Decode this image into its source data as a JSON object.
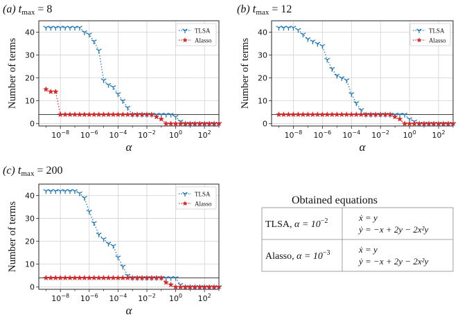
{
  "chart_data": [
    {
      "type": "line",
      "panel_label": "(a)",
      "title": "t_max = 8",
      "title_var": "t",
      "title_sub": "max",
      "title_rest": "= 8",
      "xlabel": "α",
      "ylabel": "Number of terms",
      "xscale": "log",
      "xlim_exp": [
        -9.5,
        3
      ],
      "ylim": [
        -1,
        45
      ],
      "yticks": [
        0,
        10,
        20,
        30,
        40
      ],
      "xticks_exp": [
        -8,
        -6,
        -4,
        -2,
        0,
        2
      ],
      "reference_line": 4,
      "grid": true,
      "legend": "top-right",
      "series": [
        {
          "name": "TLSA",
          "color": "#1f77b4",
          "marker": "tri",
          "x_exp": [
            -9,
            -8.667,
            -8.333,
            -8,
            -7.667,
            -7.333,
            -7,
            -6.667,
            -6.333,
            -6,
            -5.667,
            -5.333,
            -5,
            -4.667,
            -4.333,
            -4,
            -3.667,
            -3.333,
            -3,
            -2.667,
            -2.333,
            -2,
            -1.667,
            -1.333,
            -1,
            -0.667,
            -0.333,
            0,
            0.333,
            0.667,
            1,
            1.333,
            1.667,
            2,
            2.333,
            2.667,
            3
          ],
          "values": [
            42,
            42,
            42,
            42,
            42,
            42,
            42,
            42,
            40,
            39,
            36,
            32,
            19,
            17,
            16,
            13,
            10,
            7,
            4,
            4,
            4,
            4,
            4,
            4,
            4,
            4,
            4,
            3,
            1,
            0,
            0,
            0,
            0,
            0,
            0,
            0,
            0
          ]
        },
        {
          "name": "Alasso",
          "color": "#d62728",
          "marker": "star",
          "x_exp": [
            -9,
            -8.667,
            -8.333,
            -8,
            -7.667,
            -7.333,
            -7,
            -6.667,
            -6.333,
            -6,
            -5.667,
            -5.333,
            -5,
            -4.667,
            -4.333,
            -4,
            -3.667,
            -3.333,
            -3,
            -2.667,
            -2.333,
            -2,
            -1.667,
            -1.333,
            -1,
            -0.667,
            -0.333,
            0,
            0.333,
            0.667,
            1,
            1.333,
            1.667,
            2,
            2.333,
            2.667,
            3
          ],
          "values": [
            15,
            14,
            14,
            4,
            4,
            4,
            4,
            4,
            4,
            4,
            4,
            4,
            4,
            4,
            4,
            4,
            4,
            4,
            4,
            4,
            4,
            4,
            4,
            3,
            2,
            0,
            0,
            0,
            0,
            0,
            0,
            0,
            0,
            0,
            0,
            0,
            0
          ]
        }
      ]
    },
    {
      "type": "line",
      "panel_label": "(b)",
      "title": "t_max = 12",
      "title_var": "t",
      "title_sub": "max",
      "title_rest": "= 12",
      "xlabel": "α",
      "ylabel": "Number of terms",
      "xscale": "log",
      "xlim_exp": [
        -9.5,
        3
      ],
      "ylim": [
        -1,
        45
      ],
      "yticks": [
        0,
        10,
        20,
        30,
        40
      ],
      "xticks_exp": [
        -8,
        -6,
        -4,
        -2,
        0,
        2
      ],
      "reference_line": 4,
      "grid": true,
      "legend": "top-right",
      "series": [
        {
          "name": "TLSA",
          "color": "#1f77b4",
          "marker": "tri",
          "x_exp": [
            -9,
            -8.667,
            -8.333,
            -8,
            -7.667,
            -7.333,
            -7,
            -6.667,
            -6.333,
            -6,
            -5.667,
            -5.333,
            -5,
            -4.667,
            -4.333,
            -4,
            -3.667,
            -3.333,
            -3,
            -2.667,
            -2.333,
            -2,
            -1.667,
            -1.333,
            -1,
            -0.667,
            -0.333,
            0,
            0.333,
            0.667,
            1,
            1.333,
            1.667,
            2,
            2.333,
            2.667,
            3
          ],
          "values": [
            42,
            42,
            42,
            42,
            41,
            39,
            37,
            36,
            35,
            34,
            28,
            24,
            21,
            20,
            19,
            13,
            9,
            6,
            4,
            4,
            4,
            4,
            4,
            4,
            4,
            4,
            4,
            2,
            1,
            0,
            0,
            0,
            0,
            0,
            0,
            0,
            0
          ]
        },
        {
          "name": "Alasso",
          "color": "#d62728",
          "marker": "star",
          "x_exp": [
            -9,
            -8.667,
            -8.333,
            -8,
            -7.667,
            -7.333,
            -7,
            -6.667,
            -6.333,
            -6,
            -5.667,
            -5.333,
            -5,
            -4.667,
            -4.333,
            -4,
            -3.667,
            -3.333,
            -3,
            -2.667,
            -2.333,
            -2,
            -1.667,
            -1.333,
            -1,
            -0.667,
            -0.333,
            0,
            0.333,
            0.667,
            1,
            1.333,
            1.667,
            2,
            2.333,
            2.667,
            3
          ],
          "values": [
            4,
            4,
            4,
            4,
            4,
            4,
            4,
            4,
            4,
            4,
            4,
            4,
            4,
            4,
            4,
            4,
            4,
            4,
            4,
            4,
            4,
            4,
            4,
            4,
            3,
            2,
            0,
            0,
            0,
            0,
            0,
            0,
            0,
            0,
            0,
            0,
            0
          ]
        }
      ]
    },
    {
      "type": "line",
      "panel_label": "(c)",
      "title": "t_max = 200",
      "title_var": "t",
      "title_sub": "max",
      "title_rest": "= 200",
      "xlabel": "α",
      "ylabel": "Number of terms",
      "xscale": "log",
      "xlim_exp": [
        -9.5,
        3
      ],
      "ylim": [
        -1,
        45
      ],
      "yticks": [
        0,
        10,
        20,
        30,
        40
      ],
      "xticks_exp": [
        -8,
        -6,
        -4,
        -2,
        0,
        2
      ],
      "reference_line": 4,
      "grid": true,
      "legend": "top-right",
      "series": [
        {
          "name": "TLSA",
          "color": "#1f77b4",
          "marker": "tri",
          "x_exp": [
            -9,
            -8.667,
            -8.333,
            -8,
            -7.667,
            -7.333,
            -7,
            -6.667,
            -6.333,
            -6,
            -5.667,
            -5.333,
            -5,
            -4.667,
            -4.333,
            -4,
            -3.667,
            -3.333,
            -3,
            -2.667,
            -2.333,
            -2,
            -1.667,
            -1.333,
            -1,
            -0.667,
            -0.333,
            0,
            0.333,
            0.667,
            1,
            1.333,
            1.667,
            2,
            2.333,
            2.667,
            3
          ],
          "values": [
            42,
            42,
            42,
            42,
            42,
            42,
            42,
            41,
            39,
            33,
            28,
            23,
            21,
            19,
            18,
            13,
            9,
            5,
            4,
            4,
            4,
            4,
            4,
            4,
            4,
            4,
            4,
            4,
            1,
            0,
            0,
            0,
            0,
            0,
            0,
            0,
            0
          ]
        },
        {
          "name": "Alasso",
          "color": "#d62728",
          "marker": "star",
          "x_exp": [
            -9,
            -8.667,
            -8.333,
            -8,
            -7.667,
            -7.333,
            -7,
            -6.667,
            -6.333,
            -6,
            -5.667,
            -5.333,
            -5,
            -4.667,
            -4.333,
            -4,
            -3.667,
            -3.333,
            -3,
            -2.667,
            -2.333,
            -2,
            -1.667,
            -1.333,
            -1,
            -0.667,
            -0.333,
            0,
            0.333,
            0.667,
            1,
            1.333,
            1.667,
            2,
            2.333,
            2.667,
            3
          ],
          "values": [
            4,
            4,
            4,
            4,
            4,
            4,
            4,
            4,
            4,
            4,
            4,
            4,
            4,
            4,
            4,
            4,
            4,
            4,
            4,
            4,
            4,
            4,
            4,
            4,
            4,
            2,
            1,
            0,
            0,
            0,
            0,
            0,
            0,
            0,
            0,
            0,
            0
          ]
        }
      ]
    },
    {
      "type": "table",
      "title": "Obtained equations",
      "rows": [
        {
          "method": "TLSA",
          "alpha_label": "α = 10",
          "alpha_exp": "−2",
          "eq1": "ẋ = y",
          "eq2": "ẏ = −x + 2y − 2x²y"
        },
        {
          "method": "Alasso",
          "alpha_label": "α = 10",
          "alpha_exp": "−3",
          "eq1": "ẋ = y",
          "eq2": "ẏ = −x + 2y − 2x²y"
        }
      ]
    }
  ]
}
